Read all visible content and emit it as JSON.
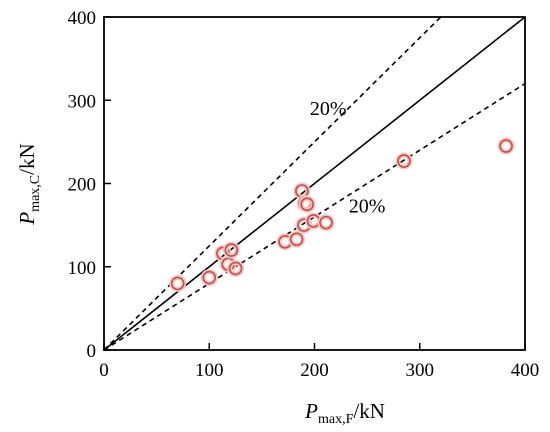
{
  "chart_data": {
    "type": "scatter",
    "title": "",
    "xlabel": {
      "main": "P",
      "sub": "max,F",
      "unit": "/kN"
    },
    "ylabel": {
      "main": "P",
      "sub": "max,C",
      "unit": "/kN"
    },
    "xlim": [
      0,
      400
    ],
    "ylim": [
      0,
      400
    ],
    "xticks": [
      "0",
      "100",
      "200",
      "300",
      "400"
    ],
    "yticks": [
      "0",
      "100",
      "200",
      "300",
      "400"
    ],
    "grid": false,
    "series": [
      {
        "points": [
          {
            "x": 70,
            "y": 80
          },
          {
            "x": 100,
            "y": 87
          },
          {
            "x": 113,
            "y": 116
          },
          {
            "x": 118,
            "y": 103
          },
          {
            "x": 121,
            "y": 120
          },
          {
            "x": 125,
            "y": 98
          },
          {
            "x": 172,
            "y": 130
          },
          {
            "x": 183,
            "y": 133
          },
          {
            "x": 188,
            "y": 191
          },
          {
            "x": 190,
            "y": 150
          },
          {
            "x": 191,
            "y": 176
          },
          {
            "x": 193,
            "y": 175
          },
          {
            "x": 199,
            "y": 155
          },
          {
            "x": 211,
            "y": 153
          },
          {
            "x": 285,
            "y": 227
          },
          {
            "x": 382,
            "y": 245
          }
        ]
      }
    ],
    "reference_lines": [
      {
        "slope": 1.0,
        "style": "solid"
      },
      {
        "slope": 1.25,
        "style": "dashed"
      },
      {
        "slope": 0.8,
        "style": "dashed"
      }
    ],
    "annotations": [
      {
        "text": "20%",
        "x": 213,
        "y": 282
      },
      {
        "text": "20%",
        "x": 250,
        "y": 165
      }
    ],
    "colors": {
      "marker": "#c0504d",
      "marker_halo": "#f4c7c3",
      "lines": "#000000"
    }
  }
}
